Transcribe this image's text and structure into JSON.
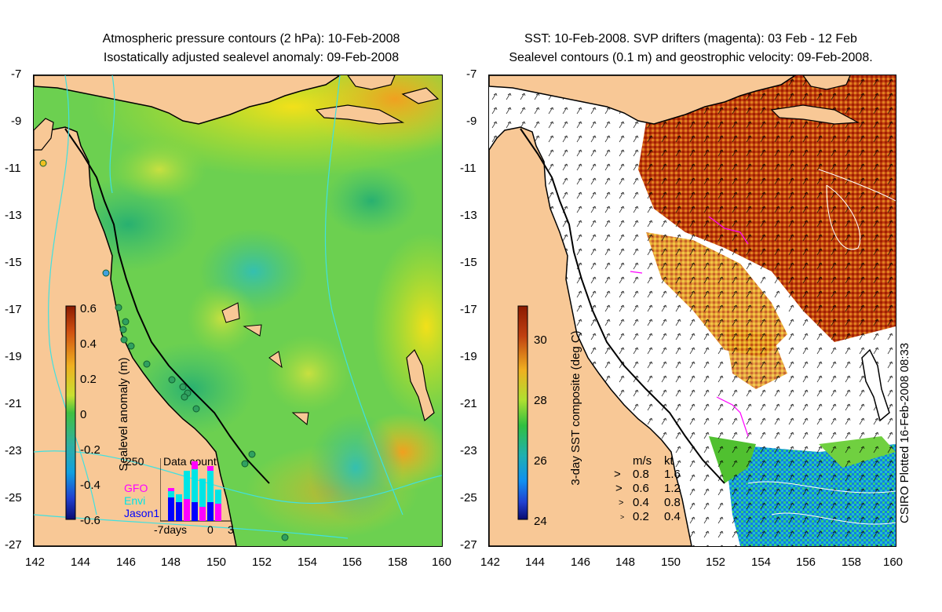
{
  "left_panel": {
    "title_line1": "Atmospheric pressure contours (2 hPa): 10-Feb-2008",
    "title_line2": "Isostatically adjusted sealevel anomaly: 09-Feb-2008",
    "colorbar": {
      "label": "Sealevel anomaly (m)",
      "ticks": [
        "0.6",
        "0.4",
        "0.2",
        "0",
        "-0.2",
        "-0.4",
        "-0.6"
      ],
      "range": [
        -0.6,
        0.6
      ]
    },
    "data_count_inset": {
      "title": "Data count",
      "y_max_label": "250",
      "satellites": [
        {
          "name": "GFO",
          "color": "#ff00ff"
        },
        {
          "name": "Envi",
          "color": "#00e5e5"
        },
        {
          "name": "Jason1",
          "color": "#0000ff"
        }
      ],
      "x_labels": [
        "-7days",
        "0",
        "3"
      ]
    }
  },
  "right_panel": {
    "title_line1": "SST: 10-Feb-2008. SVP drifters (magenta): 03 Feb - 12 Feb",
    "title_line2": "Sealevel contours (0.1 m) and geostrophic velocity: 09-Feb-2008.",
    "colorbar": {
      "label": "3-day SST composite (deg C)",
      "ticks": [
        "30",
        "28",
        "26",
        "24"
      ],
      "range": [
        24,
        31
      ]
    },
    "velocity_legend": {
      "header_ms": "m/s",
      "header_kt": "kt",
      "rows": [
        {
          "ms": "0.8",
          "kt": "1.6"
        },
        {
          "ms": "0.6",
          "kt": "1.2"
        },
        {
          "ms": "0.4",
          "kt": "0.8"
        },
        {
          "ms": "0.2",
          "kt": "0.4"
        }
      ]
    },
    "credit": "CSIRO Plotted 16-Feb-2008 08:33"
  },
  "axes": {
    "y_ticks": [
      "-7",
      "-9",
      "-11",
      "-13",
      "-15",
      "-17",
      "-19",
      "-21",
      "-23",
      "-25",
      "-27"
    ],
    "x_ticks": [
      "142",
      "144",
      "146",
      "148",
      "150",
      "152",
      "154",
      "156",
      "158",
      "160"
    ],
    "lon_range": [
      142,
      160
    ],
    "lat_range": [
      -27,
      -7
    ]
  },
  "colors": {
    "land": "#f8c896",
    "coast": "#000000",
    "pressure_contour": "#40e0e0",
    "drifter": "#ff00ff"
  }
}
